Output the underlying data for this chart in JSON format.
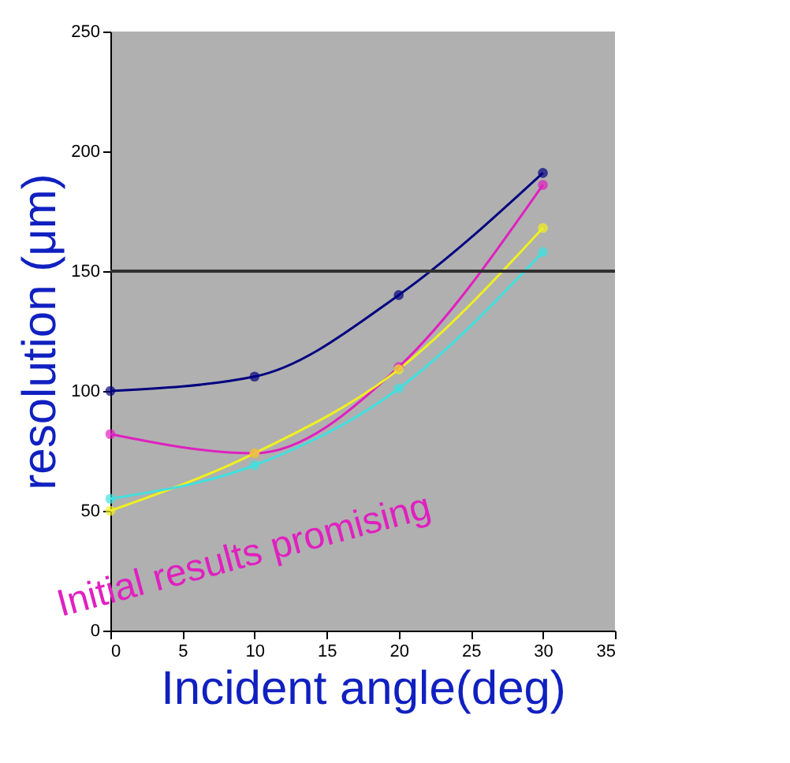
{
  "chart_data": {
    "type": "line",
    "xlabel": "Incident angle(deg)",
    "ylabel": "resolution (μm)",
    "x": [
      0,
      10,
      20,
      30
    ],
    "series": [
      {
        "color": "#000080",
        "values": [
          100,
          106,
          140,
          191
        ]
      },
      {
        "color": "#e020c0",
        "values": [
          82,
          74,
          110,
          186
        ]
      },
      {
        "color": "#f0f020",
        "values": [
          50,
          74,
          109,
          168
        ]
      },
      {
        "color": "#40e0e0",
        "values": [
          55,
          69,
          101,
          158
        ]
      }
    ],
    "xlim": [
      0,
      35
    ],
    "xticks": [
      0,
      5,
      10,
      15,
      20,
      25,
      30,
      35
    ],
    "ylim": [
      0,
      250
    ],
    "yticks": [
      0,
      50,
      100,
      150,
      200,
      250
    ],
    "ref_lines": [
      {
        "axis": "y",
        "value": 150,
        "color": "#303030"
      }
    ],
    "annotations": [
      {
        "text": "Initial results promising"
      }
    ],
    "marker": "circle",
    "line_style": "solid",
    "grid": false
  }
}
